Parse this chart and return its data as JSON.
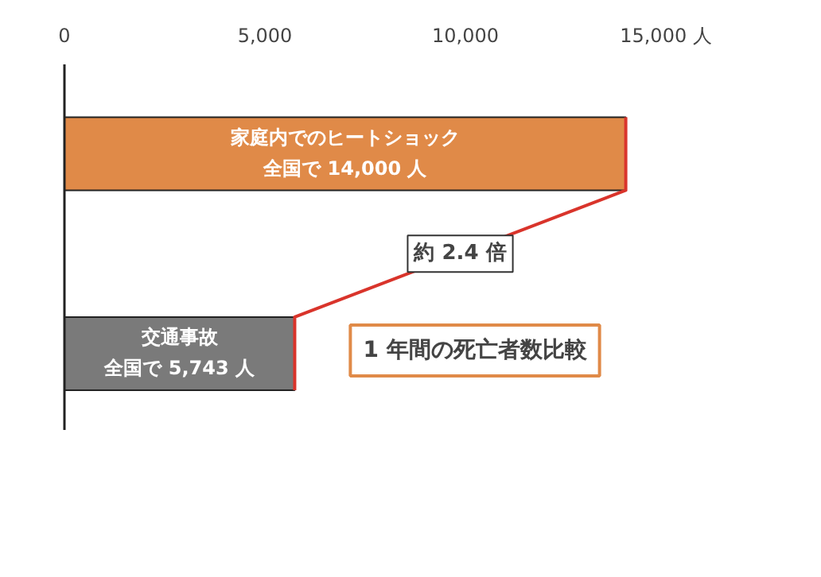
{
  "chart_data": {
    "type": "bar",
    "orientation": "horizontal",
    "title": "1 年間の死亡者数比較",
    "categories": [
      "家庭内でのヒートショック",
      "交通事故"
    ],
    "values": [
      14000,
      5743
    ],
    "colors": [
      "#e08a48",
      "#7a7a7a"
    ],
    "value_labels": [
      "全国で 14,000 人",
      "全国で 5,743 人"
    ],
    "xlim": [
      0,
      15000
    ],
    "xticks": [
      0,
      {
        "value": 5000,
        "label": "5,000"
      },
      {
        "value": 10000,
        "label": "10,000"
      },
      {
        "value": 15000,
        "label": "15,000 人"
      }
    ],
    "annotations": [
      "約 2.4 倍"
    ],
    "grid": false
  }
}
